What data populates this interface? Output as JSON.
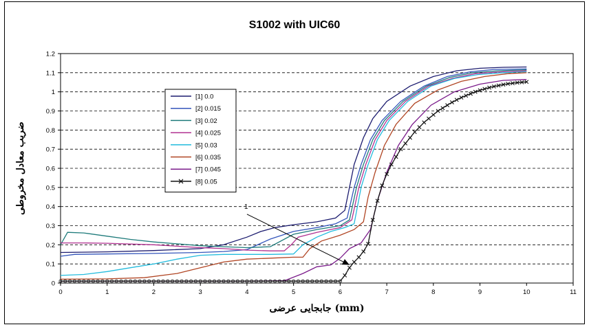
{
  "chart_data": {
    "type": "line",
    "title": "S1002 with UIC60",
    "xlabel": "جابجایی عرضی (mm)",
    "ylabel": "ضریب معادل مخروطی",
    "xlim": [
      0,
      11
    ],
    "ylim": [
      0,
      1.2
    ],
    "x_ticks": [
      "0",
      "1",
      "2",
      "3",
      "4",
      "5",
      "6",
      "7",
      "8",
      "9",
      "10",
      "11"
    ],
    "y_ticks": [
      "0",
      "0.1",
      "0.2",
      "0.3",
      "0.4",
      "0.5",
      "0.6",
      "0.7",
      "0.8",
      "0.9",
      "1",
      "1.1",
      "1.2"
    ],
    "grid": "horizontal dashed",
    "legend_position": "left-center",
    "annotation": {
      "text": "1",
      "from": [
        4.0,
        0.36
      ],
      "to": [
        6.2,
        0.095
      ]
    },
    "series": [
      {
        "name": "[1] 0.0",
        "color": "#1a1a6e",
        "marker": "none",
        "points": [
          [
            0,
            0.16
          ],
          [
            1,
            0.163
          ],
          [
            2,
            0.17
          ],
          [
            3,
            0.18
          ],
          [
            3.5,
            0.2
          ],
          [
            4,
            0.24
          ],
          [
            4.3,
            0.27
          ],
          [
            4.6,
            0.29
          ],
          [
            5,
            0.305
          ],
          [
            5.5,
            0.32
          ],
          [
            5.9,
            0.34
          ],
          [
            6.1,
            0.38
          ],
          [
            6.2,
            0.5
          ],
          [
            6.3,
            0.62
          ],
          [
            6.5,
            0.76
          ],
          [
            6.7,
            0.86
          ],
          [
            7,
            0.95
          ],
          [
            7.5,
            1.03
          ],
          [
            8,
            1.08
          ],
          [
            8.5,
            1.11
          ],
          [
            9,
            1.123
          ],
          [
            9.5,
            1.128
          ],
          [
            10,
            1.13
          ]
        ]
      },
      {
        "name": "[2] 0.015",
        "color": "#3355bb",
        "marker": "none",
        "points": [
          [
            0,
            0.14
          ],
          [
            0.3,
            0.15
          ],
          [
            1,
            0.152
          ],
          [
            2,
            0.155
          ],
          [
            3,
            0.16
          ],
          [
            3.5,
            0.165
          ],
          [
            4,
            0.175
          ],
          [
            4.5,
            0.23
          ],
          [
            5,
            0.27
          ],
          [
            5.5,
            0.29
          ],
          [
            5.9,
            0.31
          ],
          [
            6.15,
            0.34
          ],
          [
            6.3,
            0.5
          ],
          [
            6.45,
            0.62
          ],
          [
            6.65,
            0.75
          ],
          [
            6.9,
            0.85
          ],
          [
            7.3,
            0.95
          ],
          [
            7.8,
            1.03
          ],
          [
            8.3,
            1.08
          ],
          [
            8.8,
            1.105
          ],
          [
            9.3,
            1.117
          ],
          [
            10,
            1.12
          ]
        ]
      },
      {
        "name": "[3] 0.02",
        "color": "#1d7a7a",
        "marker": "none",
        "points": [
          [
            0,
            0.2
          ],
          [
            0.15,
            0.265
          ],
          [
            0.5,
            0.262
          ],
          [
            1,
            0.245
          ],
          [
            1.5,
            0.228
          ],
          [
            2,
            0.215
          ],
          [
            2.5,
            0.205
          ],
          [
            3,
            0.195
          ],
          [
            3.5,
            0.19
          ],
          [
            4,
            0.185
          ],
          [
            4.5,
            0.19
          ],
          [
            5,
            0.255
          ],
          [
            5.5,
            0.28
          ],
          [
            6,
            0.3
          ],
          [
            6.2,
            0.33
          ],
          [
            6.35,
            0.5
          ],
          [
            6.5,
            0.62
          ],
          [
            6.7,
            0.75
          ],
          [
            6.95,
            0.85
          ],
          [
            7.35,
            0.95
          ],
          [
            7.85,
            1.03
          ],
          [
            8.35,
            1.075
          ],
          [
            8.85,
            1.1
          ],
          [
            9.4,
            1.11
          ],
          [
            10,
            1.115
          ]
        ]
      },
      {
        "name": "[4] 0.025",
        "color": "#b03090",
        "marker": "none",
        "points": [
          [
            0,
            0.21
          ],
          [
            0.5,
            0.21
          ],
          [
            1,
            0.208
          ],
          [
            2,
            0.2
          ],
          [
            3,
            0.185
          ],
          [
            3.5,
            0.18
          ],
          [
            4,
            0.172
          ],
          [
            4.5,
            0.168
          ],
          [
            4.8,
            0.168
          ],
          [
            4.95,
            0.2
          ],
          [
            5.1,
            0.24
          ],
          [
            5.5,
            0.265
          ],
          [
            6,
            0.29
          ],
          [
            6.25,
            0.33
          ],
          [
            6.4,
            0.5
          ],
          [
            6.55,
            0.62
          ],
          [
            6.75,
            0.75
          ],
          [
            7.0,
            0.85
          ],
          [
            7.4,
            0.95
          ],
          [
            7.9,
            1.03
          ],
          [
            8.4,
            1.07
          ],
          [
            8.9,
            1.095
          ],
          [
            9.5,
            1.105
          ],
          [
            10,
            1.11
          ]
        ]
      },
      {
        "name": "[5] 0.03",
        "color": "#22bbdd",
        "marker": "none",
        "points": [
          [
            0,
            0.04
          ],
          [
            0.5,
            0.045
          ],
          [
            1,
            0.06
          ],
          [
            1.5,
            0.08
          ],
          [
            2,
            0.1
          ],
          [
            2.5,
            0.125
          ],
          [
            3,
            0.145
          ],
          [
            3.5,
            0.15
          ],
          [
            4,
            0.15
          ],
          [
            4.5,
            0.15
          ],
          [
            5,
            0.152
          ],
          [
            5.2,
            0.2
          ],
          [
            5.5,
            0.24
          ],
          [
            5.8,
            0.27
          ],
          [
            6.1,
            0.29
          ],
          [
            6.3,
            0.31
          ],
          [
            6.45,
            0.5
          ],
          [
            6.6,
            0.62
          ],
          [
            6.8,
            0.75
          ],
          [
            7.05,
            0.85
          ],
          [
            7.45,
            0.95
          ],
          [
            7.95,
            1.03
          ],
          [
            8.45,
            1.07
          ],
          [
            8.95,
            1.09
          ],
          [
            9.5,
            1.1
          ],
          [
            10,
            1.105
          ]
        ]
      },
      {
        "name": "[6] 0.035",
        "color": "#b04422",
        "marker": "none",
        "points": [
          [
            0,
            0.02
          ],
          [
            1,
            0.022
          ],
          [
            1.8,
            0.028
          ],
          [
            2.5,
            0.05
          ],
          [
            3,
            0.08
          ],
          [
            3.5,
            0.11
          ],
          [
            4,
            0.125
          ],
          [
            4.5,
            0.13
          ],
          [
            5,
            0.135
          ],
          [
            5.2,
            0.135
          ],
          [
            5.35,
            0.18
          ],
          [
            5.6,
            0.22
          ],
          [
            6,
            0.25
          ],
          [
            6.3,
            0.28
          ],
          [
            6.5,
            0.32
          ],
          [
            6.6,
            0.45
          ],
          [
            6.75,
            0.58
          ],
          [
            6.95,
            0.72
          ],
          [
            7.2,
            0.83
          ],
          [
            7.6,
            0.94
          ],
          [
            8.1,
            1.01
          ],
          [
            8.6,
            1.055
          ],
          [
            9.1,
            1.08
          ],
          [
            9.6,
            1.095
          ],
          [
            10,
            1.1
          ]
        ]
      },
      {
        "name": "[7] 0.045",
        "color": "#7a1a8a",
        "marker": "none",
        "points": [
          [
            0,
            0.01
          ],
          [
            2,
            0.01
          ],
          [
            4,
            0.01
          ],
          [
            4.8,
            0.012
          ],
          [
            5.2,
            0.05
          ],
          [
            5.5,
            0.085
          ],
          [
            5.8,
            0.095
          ],
          [
            6.0,
            0.13
          ],
          [
            6.2,
            0.18
          ],
          [
            6.45,
            0.21
          ],
          [
            6.65,
            0.28
          ],
          [
            6.8,
            0.43
          ],
          [
            7.0,
            0.58
          ],
          [
            7.25,
            0.72
          ],
          [
            7.55,
            0.83
          ],
          [
            7.95,
            0.93
          ],
          [
            8.45,
            1.0
          ],
          [
            9.0,
            1.04
          ],
          [
            9.5,
            1.06
          ],
          [
            10,
            1.065
          ]
        ]
      },
      {
        "name": "[8] 0.05",
        "color": "#111111",
        "marker": "x",
        "points": [
          [
            0,
            0.01
          ],
          [
            0.1,
            0.01
          ],
          [
            0.2,
            0.01
          ],
          [
            0.3,
            0.01
          ],
          [
            0.4,
            0.01
          ],
          [
            0.5,
            0.01
          ],
          [
            0.6,
            0.01
          ],
          [
            0.7,
            0.01
          ],
          [
            0.8,
            0.01
          ],
          [
            0.9,
            0.01
          ],
          [
            1.0,
            0.01
          ],
          [
            1.1,
            0.01
          ],
          [
            1.2,
            0.01
          ],
          [
            1.3,
            0.01
          ],
          [
            1.4,
            0.01
          ],
          [
            1.5,
            0.01
          ],
          [
            1.6,
            0.01
          ],
          [
            1.7,
            0.01
          ],
          [
            1.8,
            0.01
          ],
          [
            1.9,
            0.01
          ],
          [
            2.0,
            0.01
          ],
          [
            2.1,
            0.01
          ],
          [
            2.2,
            0.01
          ],
          [
            2.3,
            0.01
          ],
          [
            2.4,
            0.01
          ],
          [
            2.5,
            0.01
          ],
          [
            2.6,
            0.01
          ],
          [
            2.7,
            0.01
          ],
          [
            2.8,
            0.01
          ],
          [
            2.9,
            0.01
          ],
          [
            3.0,
            0.01
          ],
          [
            3.1,
            0.01
          ],
          [
            3.2,
            0.01
          ],
          [
            3.3,
            0.01
          ],
          [
            3.4,
            0.01
          ],
          [
            3.5,
            0.01
          ],
          [
            3.6,
            0.01
          ],
          [
            3.7,
            0.01
          ],
          [
            3.8,
            0.01
          ],
          [
            3.9,
            0.01
          ],
          [
            4.0,
            0.01
          ],
          [
            4.1,
            0.01
          ],
          [
            4.2,
            0.01
          ],
          [
            4.3,
            0.01
          ],
          [
            4.4,
            0.01
          ],
          [
            4.5,
            0.01
          ],
          [
            4.6,
            0.01
          ],
          [
            4.7,
            0.01
          ],
          [
            4.8,
            0.01
          ],
          [
            4.9,
            0.01
          ],
          [
            5.0,
            0.01
          ],
          [
            5.1,
            0.01
          ],
          [
            5.2,
            0.01
          ],
          [
            5.3,
            0.01
          ],
          [
            5.4,
            0.01
          ],
          [
            5.5,
            0.01
          ],
          [
            5.6,
            0.01
          ],
          [
            5.7,
            0.01
          ],
          [
            5.8,
            0.01
          ],
          [
            5.9,
            0.01
          ],
          [
            6.0,
            0.01
          ],
          [
            6.1,
            0.04
          ],
          [
            6.2,
            0.08
          ],
          [
            6.3,
            0.11
          ],
          [
            6.4,
            0.135
          ],
          [
            6.5,
            0.165
          ],
          [
            6.6,
            0.205
          ],
          [
            6.7,
            0.33
          ],
          [
            6.8,
            0.43
          ],
          [
            6.9,
            0.51
          ],
          [
            7.0,
            0.57
          ],
          [
            7.1,
            0.62
          ],
          [
            7.2,
            0.66
          ],
          [
            7.3,
            0.7
          ],
          [
            7.4,
            0.73
          ],
          [
            7.5,
            0.76
          ],
          [
            7.6,
            0.79
          ],
          [
            7.7,
            0.815
          ],
          [
            7.8,
            0.84
          ],
          [
            7.9,
            0.86
          ],
          [
            8.0,
            0.88
          ],
          [
            8.1,
            0.9
          ],
          [
            8.2,
            0.915
          ],
          [
            8.3,
            0.93
          ],
          [
            8.4,
            0.945
          ],
          [
            8.5,
            0.958
          ],
          [
            8.6,
            0.97
          ],
          [
            8.7,
            0.98
          ],
          [
            8.8,
            0.99
          ],
          [
            8.9,
            1.0
          ],
          [
            9.0,
            1.008
          ],
          [
            9.1,
            1.015
          ],
          [
            9.2,
            1.022
          ],
          [
            9.3,
            1.028
          ],
          [
            9.4,
            1.033
          ],
          [
            9.5,
            1.038
          ],
          [
            9.6,
            1.042
          ],
          [
            9.7,
            1.045
          ],
          [
            9.8,
            1.048
          ],
          [
            9.9,
            1.05
          ],
          [
            10.0,
            1.052
          ]
        ]
      }
    ]
  }
}
